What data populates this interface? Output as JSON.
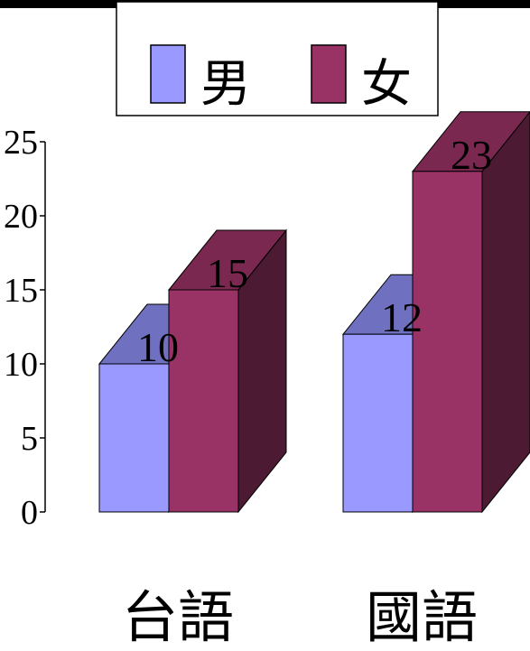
{
  "chart_data": {
    "type": "bar",
    "style": "3d-clustered-column",
    "categories": [
      "台語",
      "國語"
    ],
    "series": [
      {
        "name": "男",
        "values": [
          10,
          12
        ],
        "color": "#9999ff"
      },
      {
        "name": "女",
        "values": [
          15,
          23
        ],
        "color": "#993366"
      }
    ],
    "data_labels": true,
    "title": "",
    "xlabel": "",
    "ylabel": "",
    "ylim": [
      0,
      25
    ],
    "yticks": [
      0,
      5,
      10,
      15,
      20,
      25
    ],
    "grid": false,
    "legend_position": "top"
  },
  "colors": {
    "male_front": "#9999ff",
    "male_top": "#7070c0",
    "male_side": "#4d4d80",
    "female_front": "#993366",
    "female_top": "#7a2850",
    "female_side": "#4d1a33",
    "top_bar": "#000000"
  }
}
